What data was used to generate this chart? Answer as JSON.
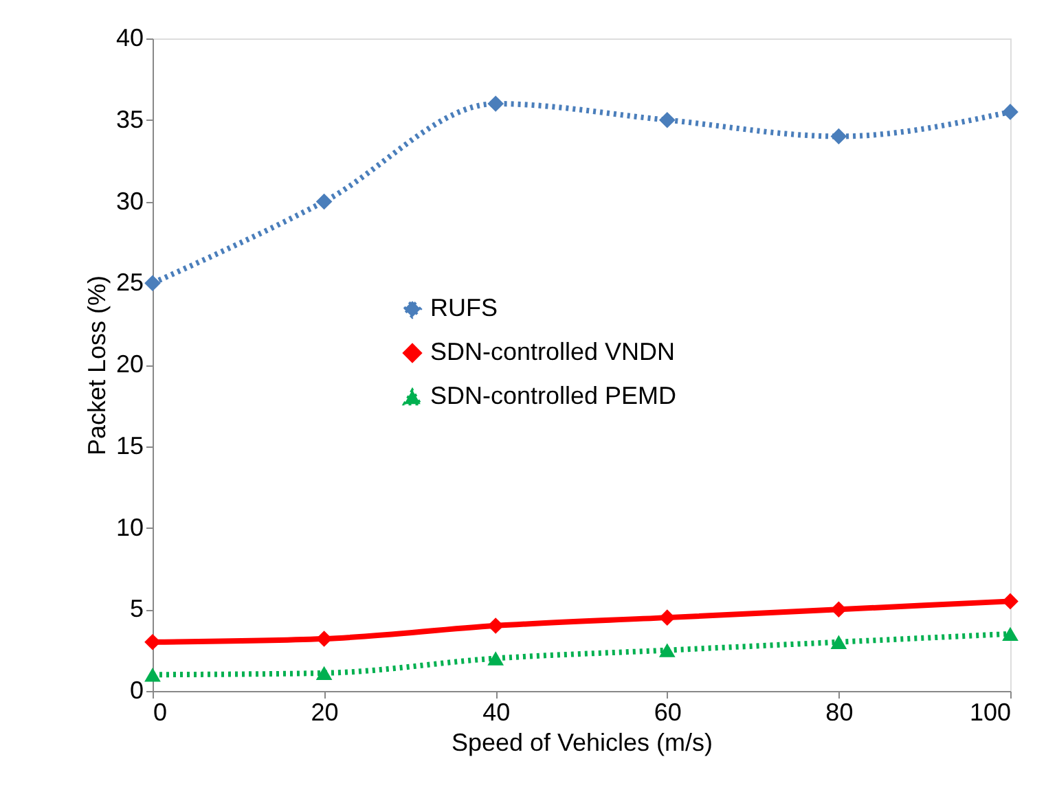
{
  "chart_data": {
    "type": "line",
    "xlabel": "Speed of Vehicles (m/s)",
    "ylabel": "Packet Loss  (%)",
    "x": [
      0,
      20,
      40,
      60,
      80,
      100
    ],
    "series": [
      {
        "name": "RUFS",
        "color": "#4a7ebb",
        "values": [
          25,
          30,
          36,
          35,
          34,
          35.5
        ],
        "marker": "diamond",
        "line_style": "dotted"
      },
      {
        "name": "SDN-controlled VNDN",
        "color": "#ff0000",
        "values": [
          3,
          3.2,
          4,
          4.5,
          5,
          5.5
        ],
        "marker": "diamond",
        "line_style": "solid"
      },
      {
        "name": "SDN-controlled PEMD",
        "color": "#00b050",
        "values": [
          1,
          1.1,
          2,
          2.5,
          3,
          3.5
        ],
        "marker": "triangle",
        "line_style": "dotted"
      }
    ],
    "xlim": [
      0,
      100
    ],
    "xticks": [
      0,
      20,
      40,
      60,
      80,
      100
    ],
    "ylim": [
      0,
      40
    ],
    "yticks": [
      0,
      5,
      10,
      15,
      20,
      25,
      30,
      35,
      40
    ],
    "grid": false,
    "legend": "center"
  }
}
